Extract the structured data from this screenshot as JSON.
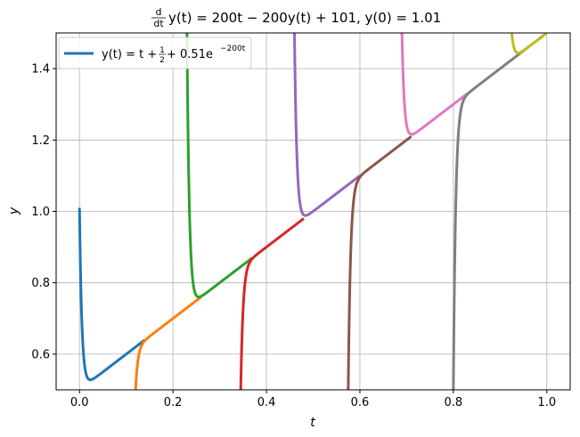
{
  "chart_data": {
    "type": "line",
    "title": "d/dt y(t) = 200t − 200y(t) + 101, y(0) = 1.01",
    "title_parts": {
      "frac_num": "d",
      "frac_den": "dt",
      "rhs": "y(t) = 200t − 200y(t) + 101, y(0) = 1.01"
    },
    "xlabel": "t",
    "ylabel": "y",
    "xlim": [
      -0.05,
      1.05
    ],
    "ylim": [
      0.5,
      1.5
    ],
    "xticks": [
      0.0,
      0.2,
      0.4,
      0.6,
      0.8,
      1.0
    ],
    "xtick_labels": [
      "0.0",
      "0.2",
      "0.4",
      "0.6",
      "0.8",
      "1.0"
    ],
    "yticks": [
      0.6,
      0.8,
      1.0,
      1.2,
      1.4
    ],
    "ytick_labels": [
      "0.6",
      "0.8",
      "1.0",
      "1.2",
      "1.4"
    ],
    "grid": true,
    "legend": {
      "location": "upper-left",
      "entries": [
        {
          "label": "y(t) = t + 1/2 + 0.51e^(−200t)",
          "parts": {
            "lhs": "y(t) = t + ",
            "frac_num": "1",
            "frac_den": "2",
            "mid": " + 0.51e",
            "sup": "−200t"
          },
          "color": "#1f77b4"
        }
      ]
    },
    "function": {
      "slope": 1.0,
      "intercept": 0.5,
      "decay_rate": 200
    },
    "series": [
      {
        "t_start": 0.0,
        "y_start": 1.01,
        "t_end": 0.14,
        "color": "#1f77b4"
      },
      {
        "t_start": 0.12,
        "y_start": 0.5,
        "t_end": 0.26,
        "color": "#ff7f0e"
      },
      {
        "t_start": 0.23,
        "y_start": 1.5,
        "t_end": 0.37,
        "color": "#2ca02c"
      },
      {
        "t_start": 0.345,
        "y_start": 0.5,
        "t_end": 0.48,
        "color": "#d62728"
      },
      {
        "t_start": 0.46,
        "y_start": 1.5,
        "t_end": 0.6,
        "color": "#9467bd"
      },
      {
        "t_start": 0.575,
        "y_start": 0.5,
        "t_end": 0.71,
        "color": "#8c564b"
      },
      {
        "t_start": 0.69,
        "y_start": 1.5,
        "t_end": 0.83,
        "color": "#e377c2"
      },
      {
        "t_start": 0.8,
        "y_start": 0.5,
        "t_end": 1.0,
        "color": "#7f7f7f"
      },
      {
        "t_start": 0.925,
        "y_start": 1.5,
        "t_end": 1.0,
        "color": "#bcbd22"
      }
    ],
    "colors": {
      "grid": "#b0b0b0",
      "axes": "#000000",
      "background": "#ffffff"
    }
  }
}
